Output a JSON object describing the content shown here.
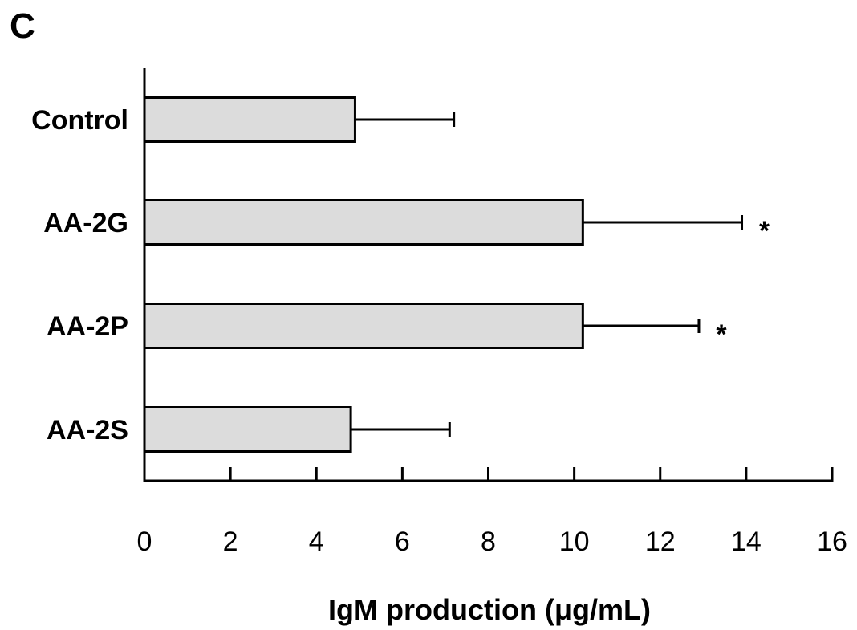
{
  "panel_label": "C",
  "chart_data": {
    "type": "bar",
    "orientation": "horizontal",
    "categories": [
      "Control",
      "AA-2G",
      "AA-2P",
      "AA-2S"
    ],
    "values": [
      4.9,
      10.2,
      10.2,
      4.8
    ],
    "errors": [
      2.3,
      3.7,
      2.7,
      2.3
    ],
    "significance": [
      "",
      "*",
      "*",
      ""
    ],
    "xlabel": "IgM production (μg/mL)",
    "ylabel": "",
    "xlim": [
      0,
      16
    ],
    "xticks": [
      "0",
      "2",
      "4",
      "6",
      "8",
      "10",
      "12",
      "14",
      "16"
    ],
    "bar_color": "#dcdcdc",
    "grid": false,
    "legend": "none"
  }
}
